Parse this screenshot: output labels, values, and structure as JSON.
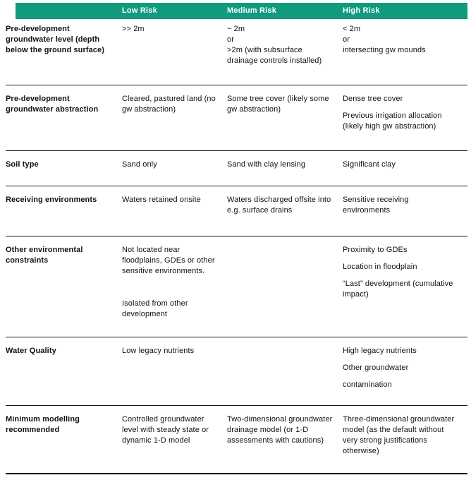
{
  "accent_color": "#119b7d",
  "text_color": "#111111",
  "table": {
    "columns": [
      "",
      "Low Risk",
      "Medium Risk",
      "High Risk"
    ],
    "rows": [
      {
        "attribute": "Pre-development groundwater level (depth below the ground surface)",
        "low": [
          ">> 2m"
        ],
        "medium": [
          "~ 2m\nor\n>2m  (with subsurface drainage controls installed)"
        ],
        "high": [
          "< 2m\nor\nintersecting gw mounds"
        ]
      },
      {
        "attribute": "Pre-development groundwater abstraction",
        "low": [
          "Cleared, pastured land (no gw abstraction)"
        ],
        "medium": [
          "Some tree cover (likely some gw abstraction)"
        ],
        "high": [
          "Dense tree cover",
          "Previous irrigation allocation (likely high gw abstraction)"
        ]
      },
      {
        "attribute": "Soil type",
        "low": [
          "Sand only"
        ],
        "medium": [
          "Sand with clay lensing"
        ],
        "high": [
          "Significant clay"
        ]
      },
      {
        "attribute": "Receiving environments",
        "low": [
          "Waters retained onsite"
        ],
        "medium": [
          "Waters discharged offsite into e.g. surface drains"
        ],
        "high": [
          "Sensitive receiving environments"
        ]
      },
      {
        "attribute": "Other environmental constraints",
        "low": [
          "Not located near floodplains, GDEs or other sensitive environments.",
          "",
          "Isolated from other development"
        ],
        "medium": [],
        "high": [
          "Proximity to GDEs",
          "Location in floodplain",
          "“Last” development (cumulative impact)"
        ]
      },
      {
        "attribute": "Water Quality",
        "low": [
          "Low legacy nutrients"
        ],
        "medium": [],
        "high": [
          "High legacy nutrients",
          "Other groundwater",
          "contamination"
        ]
      },
      {
        "attribute": "Minimum modelling recommended",
        "low": [
          "Controlled groundwater level with steady state or dynamic 1-D model"
        ],
        "medium": [
          "Two-dimensional groundwater drainage model (or 1-D assessments with cautions)"
        ],
        "high": [
          "Three-dimensional groundwater model (as the default without very strong justifications otherwise)"
        ]
      }
    ]
  }
}
